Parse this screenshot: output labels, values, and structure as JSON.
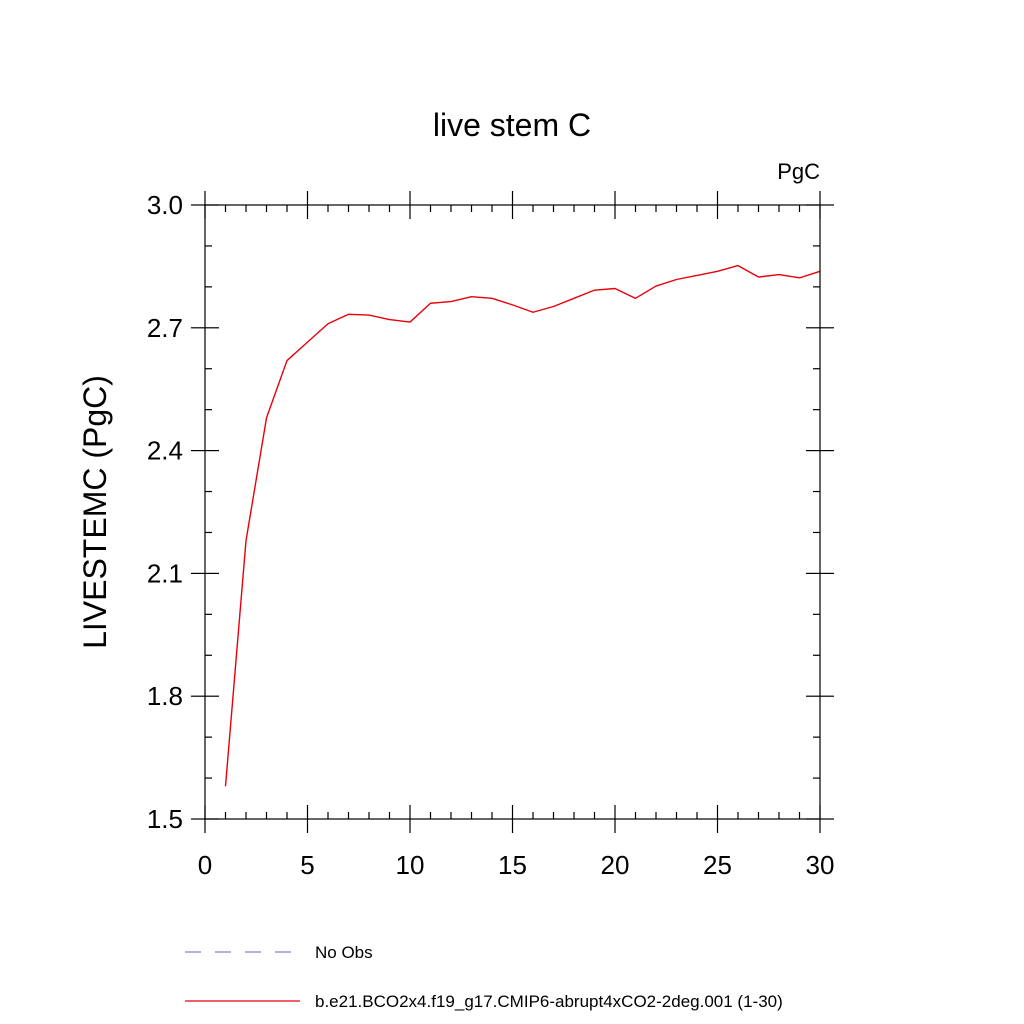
{
  "chart_data": {
    "type": "line",
    "title": "live stem C",
    "units_label": "PgC",
    "ylabel": "LIVESTEMC  (PgC)",
    "xlabel": "",
    "xlim": [
      0,
      30
    ],
    "ylim": [
      1.5,
      3.0
    ],
    "x_ticks": [
      0,
      5,
      10,
      15,
      20,
      25,
      30
    ],
    "x_tick_labels": [
      "0",
      "5",
      "10",
      "15",
      "20",
      "25",
      "30"
    ],
    "y_ticks": [
      1.5,
      1.8,
      2.1,
      2.4,
      2.7,
      3.0
    ],
    "y_tick_labels": [
      "1.5",
      "1.8",
      "2.1",
      "2.4",
      "2.7",
      "3.0"
    ],
    "grid": false,
    "legend_placement": "bottom",
    "legend": [
      {
        "label": "No Obs",
        "color": "#8a7fc8",
        "style": "dashed"
      },
      {
        "label": "b.e21.BCO2x4.f19_g17.CMIP6-abrupt4xCO2-2deg.001 (1-30)",
        "color": "#e8000b",
        "style": "solid"
      }
    ],
    "series": [
      {
        "name": "b.e21.BCO2x4.f19_g17.CMIP6-abrupt4xCO2-2deg.001 (1-30)",
        "color": "#e8000b",
        "x": [
          1,
          2,
          3,
          4,
          5,
          6,
          7,
          8,
          9,
          10,
          11,
          12,
          13,
          14,
          15,
          16,
          17,
          18,
          19,
          20,
          21,
          22,
          23,
          24,
          25,
          26,
          27,
          28,
          29,
          30
        ],
        "values": [
          1.58,
          2.18,
          2.48,
          2.62,
          2.665,
          2.71,
          2.733,
          2.731,
          2.72,
          2.714,
          2.76,
          2.764,
          2.776,
          2.772,
          2.756,
          2.738,
          2.752,
          2.772,
          2.792,
          2.796,
          2.772,
          2.802,
          2.818,
          2.828,
          2.838,
          2.852,
          2.824,
          2.83,
          2.822,
          2.838
        ]
      }
    ]
  }
}
